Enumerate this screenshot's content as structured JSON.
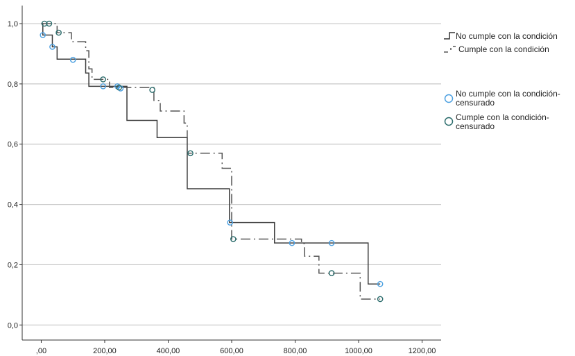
{
  "chart_data": {
    "type": "line",
    "subtype": "kaplan-meier-step",
    "title": "",
    "xlabel": "",
    "ylabel": "",
    "xlim": [
      -60,
      1260
    ],
    "ylim": [
      -0.05,
      1.06
    ],
    "x_ticks": [
      0,
      200,
      400,
      600,
      800,
      1000,
      1200
    ],
    "x_tick_labels": [
      ",00",
      "200,00",
      "400,00",
      "600,00",
      "800,00",
      "1000,00",
      "1200,00"
    ],
    "y_ticks": [
      0,
      0.2,
      0.4,
      0.6,
      0.8,
      1.0
    ],
    "y_tick_labels": [
      "0,0",
      "0,2",
      "0,4",
      "0,6",
      "0,8",
      "1,0"
    ],
    "grid": "horizontal",
    "legend_position": "right",
    "series": [
      {
        "name": "No cumple con la condición",
        "style": "solid",
        "color": "#3c3c3c",
        "points": [
          [
            0,
            1.0
          ],
          [
            5,
            0.962
          ],
          [
            35,
            0.923
          ],
          [
            50,
            0.882
          ],
          [
            140,
            0.836
          ],
          [
            150,
            0.792
          ],
          [
            270,
            0.679
          ],
          [
            365,
            0.622
          ],
          [
            460,
            0.452
          ],
          [
            593,
            0.34
          ],
          [
            735,
            0.272
          ],
          [
            1030,
            0.136
          ],
          [
            1068,
            0.136
          ]
        ]
      },
      {
        "name": "Cumple con la condición",
        "style": "dashdot",
        "color": "#555555",
        "points": [
          [
            0,
            1.0
          ],
          [
            10,
            1.0
          ],
          [
            50,
            0.97
          ],
          [
            95,
            0.94
          ],
          [
            140,
            0.91
          ],
          [
            150,
            0.85
          ],
          [
            160,
            0.815
          ],
          [
            215,
            0.788
          ],
          [
            355,
            0.745
          ],
          [
            375,
            0.71
          ],
          [
            450,
            0.67
          ],
          [
            460,
            0.57
          ],
          [
            570,
            0.52
          ],
          [
            600,
            0.285
          ],
          [
            820,
            0.27
          ],
          [
            830,
            0.228
          ],
          [
            875,
            0.172
          ],
          [
            1005,
            0.086
          ],
          [
            1068,
            0.086
          ]
        ]
      },
      {
        "name": "No cumple con la condición-censurado",
        "marker": "circle",
        "color": "#4a9fe0",
        "points": [
          [
            5,
            0.962
          ],
          [
            35,
            0.923
          ],
          [
            100,
            0.88
          ],
          [
            195,
            0.792
          ],
          [
            240,
            0.792
          ],
          [
            250,
            0.785
          ],
          [
            595,
            0.34
          ],
          [
            790,
            0.272
          ],
          [
            915,
            0.272
          ],
          [
            1068,
            0.136
          ]
        ]
      },
      {
        "name": "Cumple con la condición-censurado",
        "marker": "circle",
        "color": "#2a6b6b",
        "points": [
          [
            10,
            1.0
          ],
          [
            25,
            1.0
          ],
          [
            55,
            0.97
          ],
          [
            195,
            0.815
          ],
          [
            245,
            0.788
          ],
          [
            350,
            0.78
          ],
          [
            470,
            0.57
          ],
          [
            605,
            0.285
          ],
          [
            915,
            0.172
          ],
          [
            1068,
            0.086
          ]
        ]
      }
    ],
    "legend": [
      {
        "label": "No cumple con la condición",
        "kind": "solid-step"
      },
      {
        "label": "Cumple con la condición",
        "kind": "dashdot-step"
      },
      {
        "label": "No cumple con la condición-censurado",
        "kind": "circle"
      },
      {
        "label": "Cumple con la condición-censurado",
        "kind": "circle"
      }
    ]
  }
}
